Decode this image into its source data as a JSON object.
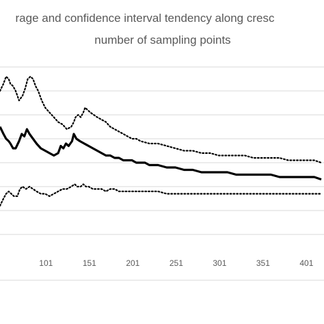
{
  "chart_data": {
    "type": "line",
    "title_line1": "rage and confidence interval tendency along cresc",
    "title_line2": "number of sampling points",
    "x_ticks": [
      "101",
      "151",
      "201",
      "251",
      "301",
      "351",
      "401"
    ],
    "xlim": [
      48,
      418
    ],
    "ylim": [
      0,
      7
    ],
    "grid": true,
    "legend": "none",
    "series": [
      {
        "style": "dotted",
        "values": [
          [
            48,
            6.0
          ],
          [
            52,
            6.3
          ],
          [
            55,
            6.6
          ],
          [
            58,
            6.5
          ],
          [
            60,
            6.3
          ],
          [
            63,
            6.2
          ],
          [
            66,
            6.0
          ],
          [
            70,
            5.6
          ],
          [
            74,
            5.8
          ],
          [
            77,
            6.1
          ],
          [
            80,
            6.5
          ],
          [
            83,
            6.6
          ],
          [
            86,
            6.5
          ],
          [
            89,
            6.2
          ],
          [
            92,
            6.0
          ],
          [
            96,
            5.6
          ],
          [
            100,
            5.3
          ],
          [
            105,
            5.1
          ],
          [
            110,
            4.9
          ],
          [
            115,
            4.7
          ],
          [
            120,
            4.6
          ],
          [
            125,
            4.4
          ],
          [
            130,
            4.5
          ],
          [
            133,
            4.7
          ],
          [
            135,
            4.9
          ],
          [
            138,
            5.0
          ],
          [
            141,
            4.9
          ],
          [
            144,
            5.1
          ],
          [
            146,
            5.3
          ],
          [
            149,
            5.2
          ],
          [
            152,
            5.1
          ],
          [
            156,
            5.0
          ],
          [
            160,
            4.9
          ],
          [
            165,
            4.8
          ],
          [
            170,
            4.7
          ],
          [
            175,
            4.5
          ],
          [
            180,
            4.4
          ],
          [
            185,
            4.3
          ],
          [
            190,
            4.2
          ],
          [
            195,
            4.1
          ],
          [
            200,
            4.0
          ],
          [
            205,
            4.0
          ],
          [
            210,
            3.9
          ],
          [
            220,
            3.8
          ],
          [
            230,
            3.8
          ],
          [
            240,
            3.7
          ],
          [
            250,
            3.6
          ],
          [
            260,
            3.5
          ],
          [
            270,
            3.5
          ],
          [
            280,
            3.4
          ],
          [
            290,
            3.4
          ],
          [
            300,
            3.3
          ],
          [
            310,
            3.3
          ],
          [
            320,
            3.3
          ],
          [
            330,
            3.3
          ],
          [
            340,
            3.2
          ],
          [
            350,
            3.2
          ],
          [
            360,
            3.2
          ],
          [
            370,
            3.2
          ],
          [
            380,
            3.1
          ],
          [
            390,
            3.1
          ],
          [
            400,
            3.1
          ],
          [
            410,
            3.1
          ],
          [
            418,
            3.0
          ]
        ]
      },
      {
        "style": "solid",
        "values": [
          [
            48,
            4.5
          ],
          [
            52,
            4.2
          ],
          [
            55,
            4.0
          ],
          [
            58,
            3.9
          ],
          [
            60,
            3.8
          ],
          [
            63,
            3.6
          ],
          [
            66,
            3.6
          ],
          [
            70,
            3.9
          ],
          [
            73,
            4.2
          ],
          [
            76,
            4.1
          ],
          [
            79,
            4.4
          ],
          [
            82,
            4.2
          ],
          [
            86,
            4.0
          ],
          [
            90,
            3.8
          ],
          [
            95,
            3.6
          ],
          [
            100,
            3.5
          ],
          [
            105,
            3.4
          ],
          [
            110,
            3.3
          ],
          [
            115,
            3.4
          ],
          [
            118,
            3.7
          ],
          [
            121,
            3.6
          ],
          [
            124,
            3.8
          ],
          [
            127,
            3.7
          ],
          [
            131,
            3.9
          ],
          [
            133,
            4.2
          ],
          [
            136,
            4.0
          ],
          [
            140,
            3.9
          ],
          [
            145,
            3.8
          ],
          [
            150,
            3.7
          ],
          [
            155,
            3.6
          ],
          [
            160,
            3.5
          ],
          [
            165,
            3.4
          ],
          [
            170,
            3.3
          ],
          [
            175,
            3.3
          ],
          [
            180,
            3.2
          ],
          [
            185,
            3.2
          ],
          [
            190,
            3.1
          ],
          [
            195,
            3.1
          ],
          [
            200,
            3.1
          ],
          [
            205,
            3.0
          ],
          [
            210,
            3.0
          ],
          [
            215,
            3.0
          ],
          [
            220,
            2.9
          ],
          [
            230,
            2.9
          ],
          [
            240,
            2.8
          ],
          [
            250,
            2.8
          ],
          [
            260,
            2.7
          ],
          [
            270,
            2.7
          ],
          [
            280,
            2.6
          ],
          [
            290,
            2.6
          ],
          [
            300,
            2.6
          ],
          [
            310,
            2.6
          ],
          [
            320,
            2.5
          ],
          [
            330,
            2.5
          ],
          [
            340,
            2.5
          ],
          [
            350,
            2.5
          ],
          [
            360,
            2.5
          ],
          [
            370,
            2.4
          ],
          [
            380,
            2.4
          ],
          [
            390,
            2.4
          ],
          [
            400,
            2.4
          ],
          [
            410,
            2.4
          ],
          [
            418,
            2.3
          ]
        ]
      },
      {
        "style": "dotted",
        "values": [
          [
            48,
            1.2
          ],
          [
            52,
            1.5
          ],
          [
            55,
            1.7
          ],
          [
            58,
            1.8
          ],
          [
            61,
            1.7
          ],
          [
            64,
            1.6
          ],
          [
            68,
            1.6
          ],
          [
            71,
            1.9
          ],
          [
            74,
            2.0
          ],
          [
            78,
            1.9
          ],
          [
            82,
            2.0
          ],
          [
            86,
            1.9
          ],
          [
            90,
            1.8
          ],
          [
            95,
            1.7
          ],
          [
            100,
            1.7
          ],
          [
            105,
            1.6
          ],
          [
            110,
            1.7
          ],
          [
            115,
            1.8
          ],
          [
            120,
            1.9
          ],
          [
            125,
            1.9
          ],
          [
            130,
            2.0
          ],
          [
            134,
            2.1
          ],
          [
            137,
            2.0
          ],
          [
            141,
            2.0
          ],
          [
            144,
            2.1
          ],
          [
            147,
            2.0
          ],
          [
            150,
            2.0
          ],
          [
            155,
            1.9
          ],
          [
            160,
            1.9
          ],
          [
            165,
            1.9
          ],
          [
            170,
            1.8
          ],
          [
            175,
            1.9
          ],
          [
            180,
            1.9
          ],
          [
            185,
            1.8
          ],
          [
            190,
            1.8
          ],
          [
            195,
            1.8
          ],
          [
            200,
            1.8
          ],
          [
            205,
            1.8
          ],
          [
            210,
            1.8
          ],
          [
            220,
            1.8
          ],
          [
            230,
            1.8
          ],
          [
            240,
            1.7
          ],
          [
            250,
            1.7
          ],
          [
            260,
            1.7
          ],
          [
            270,
            1.7
          ],
          [
            280,
            1.7
          ],
          [
            290,
            1.7
          ],
          [
            300,
            1.7
          ],
          [
            310,
            1.7
          ],
          [
            320,
            1.7
          ],
          [
            330,
            1.7
          ],
          [
            340,
            1.7
          ],
          [
            350,
            1.7
          ],
          [
            360,
            1.7
          ],
          [
            370,
            1.7
          ],
          [
            380,
            1.7
          ],
          [
            390,
            1.7
          ],
          [
            400,
            1.7
          ],
          [
            410,
            1.7
          ],
          [
            418,
            1.7
          ]
        ]
      }
    ]
  }
}
